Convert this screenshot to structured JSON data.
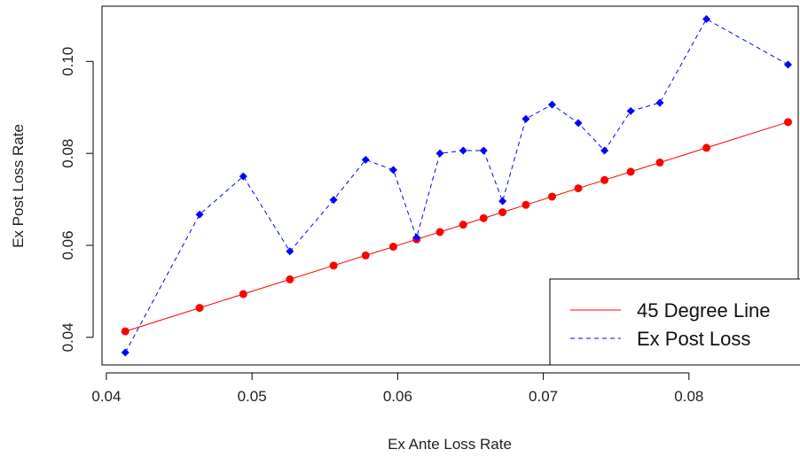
{
  "chart_data": {
    "type": "line",
    "xlabel": "Ex Ante Loss Rate",
    "ylabel": "Ex Post Loss Rate",
    "xlim": [
      0.0397,
      0.0875
    ],
    "ylim": [
      0.034,
      0.112
    ],
    "x_ticks": [
      0.04,
      0.05,
      0.06,
      0.07,
      0.08
    ],
    "x_tick_labels": [
      "0.04",
      "0.05",
      "0.06",
      "0.07",
      "0.08"
    ],
    "y_ticks": [
      0.04,
      0.06,
      0.08,
      0.1
    ],
    "y_tick_labels": [
      "0.04",
      "0.06",
      "0.08",
      "0.10"
    ],
    "x": [
      0.0413,
      0.0464,
      0.0494,
      0.0526,
      0.0556,
      0.0578,
      0.0597,
      0.0613,
      0.0629,
      0.0645,
      0.0659,
      0.0672,
      0.0688,
      0.0706,
      0.0724,
      0.0742,
      0.076,
      0.078,
      0.0812,
      0.0868
    ],
    "series": [
      {
        "name": "45 Degree Line",
        "color": "#ff0000",
        "line_style": "solid",
        "marker": "circle",
        "values": [
          0.0413,
          0.0464,
          0.0494,
          0.0526,
          0.0556,
          0.0578,
          0.0597,
          0.0613,
          0.0629,
          0.0645,
          0.0659,
          0.0672,
          0.0688,
          0.0706,
          0.0724,
          0.0742,
          0.076,
          0.078,
          0.0812,
          0.0868
        ]
      },
      {
        "name": "Ex Post Loss",
        "color": "#0000ff",
        "line_style": "dashed",
        "marker": "diamond",
        "values": [
          0.0367,
          0.0667,
          0.075,
          0.0587,
          0.0699,
          0.0786,
          0.0764,
          0.0617,
          0.08,
          0.0806,
          0.0806,
          0.0696,
          0.0875,
          0.0906,
          0.0866,
          0.0806,
          0.0892,
          0.091,
          0.1092,
          0.0993
        ]
      }
    ],
    "legend": {
      "position": "bottom-right",
      "entries": [
        "45 Degree Line",
        "Ex Post Loss"
      ]
    },
    "grid": false
  }
}
